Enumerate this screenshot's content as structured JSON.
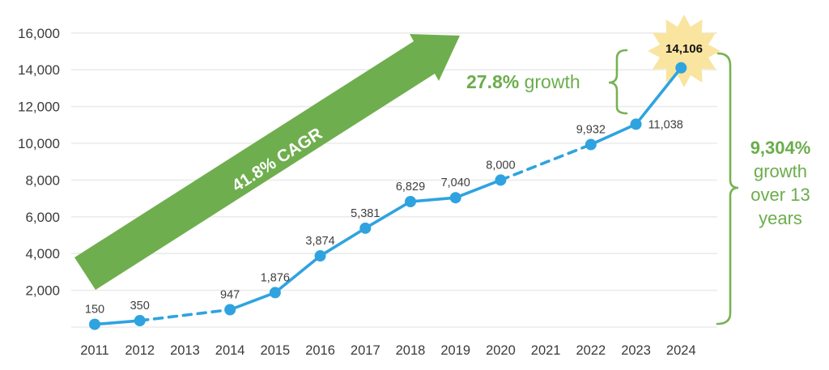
{
  "chart_data": {
    "type": "line",
    "title": "",
    "xlabel": "",
    "ylabel": "",
    "years": [
      2011,
      2012,
      2013,
      2014,
      2015,
      2016,
      2017,
      2018,
      2019,
      2020,
      2021,
      2022,
      2023,
      2024
    ],
    "points": [
      {
        "year": 2011,
        "value": 150,
        "label": "150",
        "label_pos": "above"
      },
      {
        "year": 2012,
        "value": 350,
        "label": "350",
        "label_pos": "above"
      },
      {
        "year": 2014,
        "value": 947,
        "label": "947",
        "label_pos": "above"
      },
      {
        "year": 2015,
        "value": 1876,
        "label": "1,876",
        "label_pos": "above"
      },
      {
        "year": 2016,
        "value": 3874,
        "label": "3,874",
        "label_pos": "above"
      },
      {
        "year": 2017,
        "value": 5381,
        "label": "5,381",
        "label_pos": "above"
      },
      {
        "year": 2018,
        "value": 6829,
        "label": "6,829",
        "label_pos": "above"
      },
      {
        "year": 2019,
        "value": 7040,
        "label": "7,040",
        "label_pos": "above"
      },
      {
        "year": 2020,
        "value": 8000,
        "label": "8,000",
        "label_pos": "above"
      },
      {
        "year": 2022,
        "value": 9932,
        "label": "9,932",
        "label_pos": "above"
      },
      {
        "year": 2023,
        "value": 11038,
        "label": "11,038",
        "label_pos": "right"
      },
      {
        "year": 2024,
        "value": 14106,
        "label": "14,106",
        "label_pos": "starburst"
      }
    ],
    "dashed_segments": [
      [
        2012,
        2014
      ],
      [
        2020,
        2022
      ]
    ],
    "ytick_values": [
      2000,
      4000,
      6000,
      8000,
      10000,
      12000,
      14000,
      16000
    ],
    "ytick_labels": [
      "2,000",
      "4,000",
      "6,000",
      "8,000",
      "10,000",
      "12,000",
      "14,000",
      "16,000"
    ],
    "ylim": [
      0,
      16600
    ],
    "grid": "horizontal",
    "legend": "none"
  },
  "annotations": {
    "arrow": {
      "label": "41.8% CAGR"
    },
    "growth_callout": {
      "bold": "27.8%",
      "rest": " growth"
    },
    "total_callout": {
      "bold": "9,304%",
      "line2": "growth",
      "line3": "over 13",
      "line4": "years"
    },
    "starburst": {
      "label": "14,106"
    }
  },
  "colors": {
    "line": "#2fa3e0",
    "arrow_green": "#6fae4e",
    "brace_green": "#77b254",
    "text_green": "#6bad4c",
    "starburst_fill": "#f9e5a0",
    "grid": "#ebebeb",
    "axis_text": "#3b3b3b",
    "point_label": "#3f3f3f"
  }
}
